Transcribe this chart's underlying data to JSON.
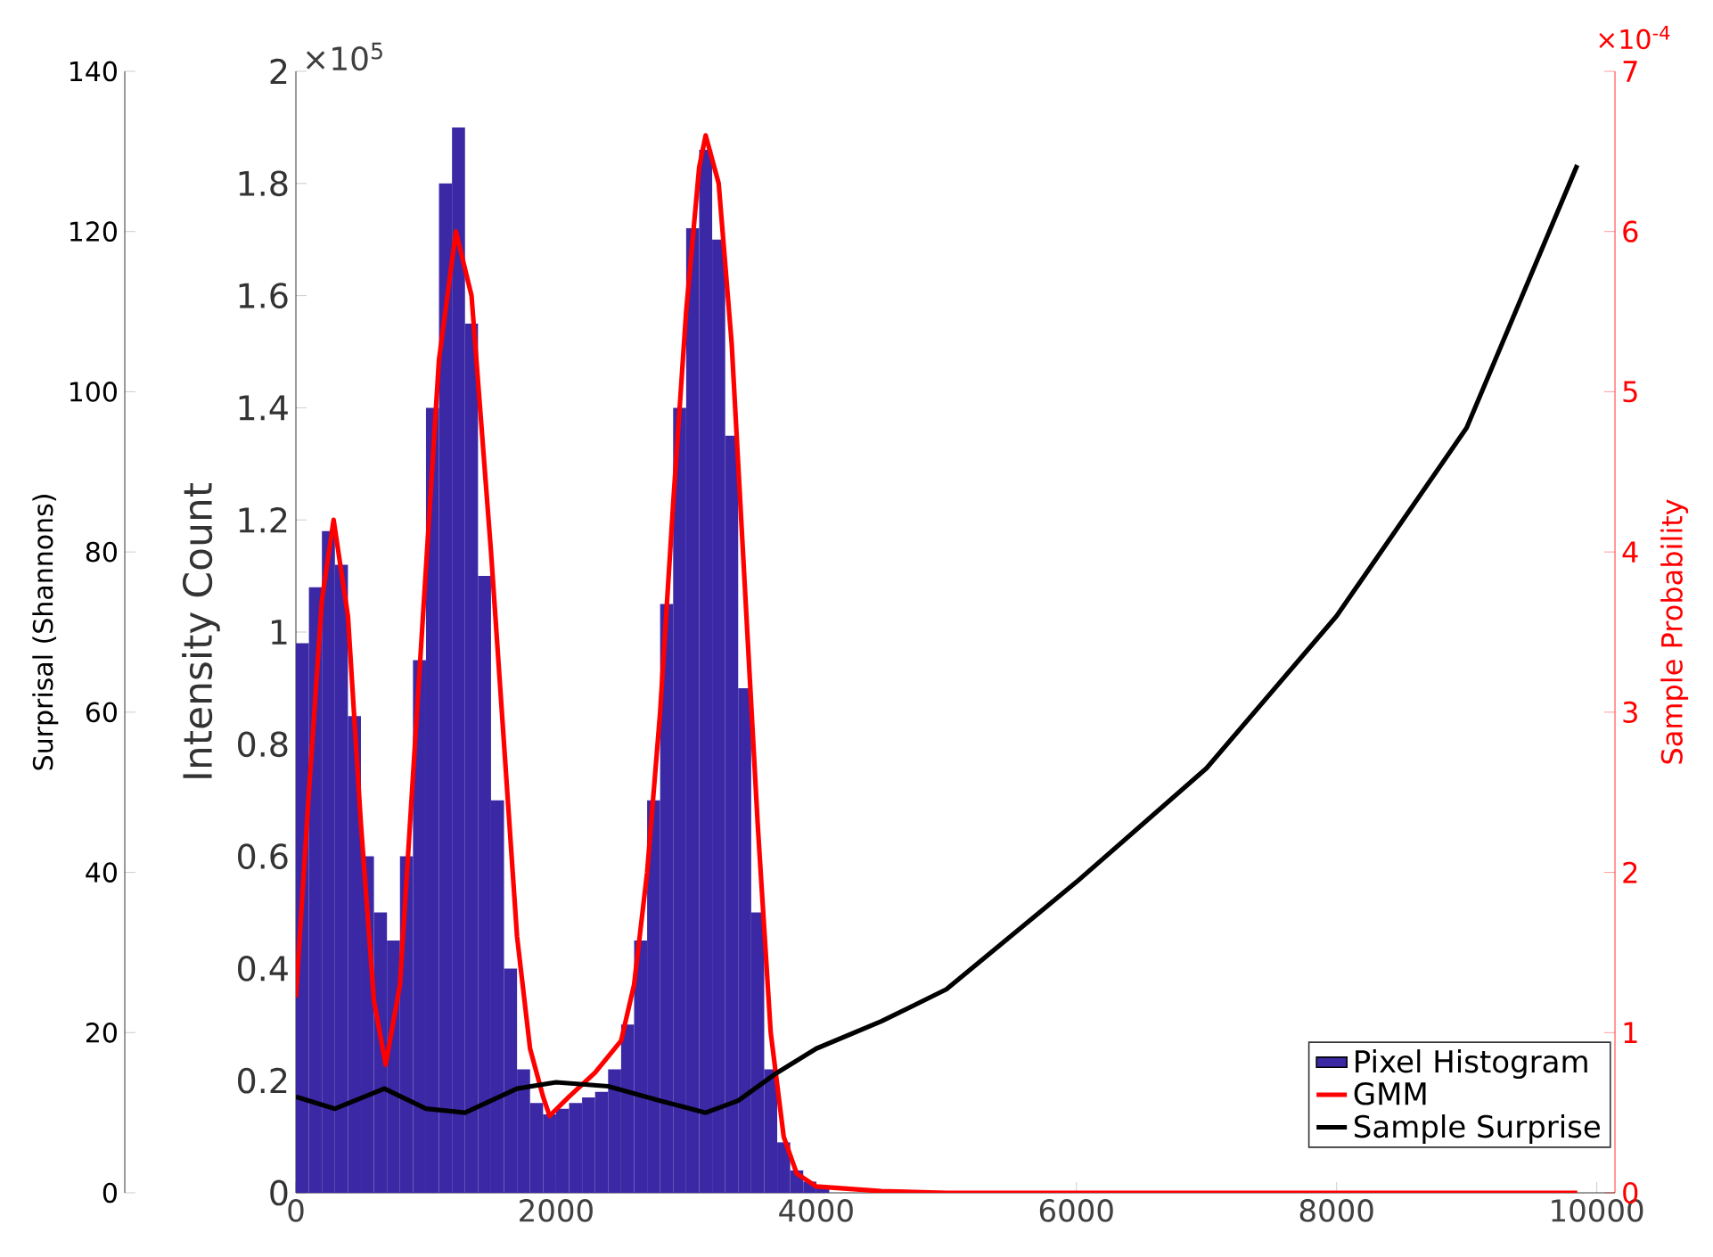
{
  "chart_data": {
    "type": "histogram",
    "ylabel": "Intensity Count",
    "y2label": "Sample Probability",
    "y3label": "Surprisal (Shannons)",
    "annotations": [
      "×10$^{5}$",
      "×10$^{-4}$"
    ],
    "xlim": [
      0,
      10140
    ],
    "xticks": [
      0,
      2000,
      4000,
      6000,
      8000,
      10000
    ],
    "ylim": [
      0,
      2
    ],
    "yticks": [
      0,
      0.2,
      0.4,
      0.6,
      0.8,
      1,
      1.2,
      1.4,
      1.6,
      1.8,
      2
    ],
    "y2lim": [
      0,
      7
    ],
    "y2ticks": [
      0,
      1,
      2,
      3,
      4,
      5,
      6,
      7
    ],
    "y3lim": [
      0,
      140
    ],
    "y3ticks": [
      0,
      20,
      40,
      60,
      80,
      100,
      120,
      140
    ],
    "legend": "bottom right",
    "series": [
      {
        "name": "Pixel Histogram",
        "color": "#3b28a4",
        "bins": [
          0,
          100,
          200,
          300,
          400,
          500,
          600,
          700,
          800,
          900,
          1000,
          1100,
          1200,
          1300,
          1400,
          1500,
          1600,
          1700,
          1800,
          1900,
          2000,
          2100,
          2200,
          2300,
          2400,
          2500,
          2600,
          2700,
          2800,
          2900,
          3000,
          3100,
          3200,
          3300,
          3400,
          3500,
          3600,
          3700,
          3800,
          3900,
          4000,
          4100,
          4200
        ],
        "values": [
          0.98,
          1.08,
          1.18,
          1.12,
          0.85,
          0.6,
          0.5,
          0.45,
          0.6,
          0.95,
          1.4,
          1.8,
          1.9,
          1.55,
          1.1,
          0.7,
          0.4,
          0.22,
          0.16,
          0.14,
          0.15,
          0.16,
          0.17,
          0.18,
          0.22,
          0.3,
          0.45,
          0.7,
          1.05,
          1.4,
          1.72,
          1.86,
          1.7,
          1.35,
          0.9,
          0.5,
          0.22,
          0.09,
          0.04,
          0.02,
          0.01,
          null
        ]
      },
      {
        "type": "line",
        "axis": "y2",
        "name": "GMM",
        "color": "#ff0000",
        "x": [
          0,
          100,
          200,
          290,
          400,
          500,
          600,
          690,
          800,
          900,
          1000,
          1100,
          1230,
          1350,
          1500,
          1600,
          1700,
          1800,
          1900,
          1950,
          2100,
          2300,
          2500,
          2600,
          2700,
          2800,
          2900,
          3000,
          3100,
          3150,
          3250,
          3350,
          3450,
          3550,
          3650,
          3750,
          3850,
          4000,
          4500,
          5000,
          9850
        ],
        "values": [
          1.22,
          2.5,
          3.7,
          4.2,
          3.6,
          2.3,
          1.2,
          0.8,
          1.3,
          2.6,
          3.9,
          5.2,
          6.0,
          5.6,
          4.0,
          2.8,
          1.6,
          0.9,
          0.6,
          0.48,
          0.6,
          0.75,
          0.95,
          1.3,
          2.0,
          3.0,
          4.3,
          5.5,
          6.4,
          6.6,
          6.3,
          5.3,
          3.8,
          2.3,
          1.0,
          0.35,
          0.12,
          0.04,
          0.01,
          0,
          0
        ]
      },
      {
        "type": "line",
        "axis": "y3",
        "name": "Sample Surprise",
        "color": "#000000",
        "x": [
          0,
          300,
          680,
          1000,
          1300,
          1700,
          2000,
          2400,
          2800,
          3150,
          3400,
          3700,
          4000,
          4500,
          5000,
          6000,
          7000,
          8000,
          9000,
          9850
        ],
        "values": [
          12,
          10.5,
          13,
          10.5,
          10,
          13,
          13.8,
          13.3,
          11.5,
          10,
          11.5,
          15,
          18,
          21.4,
          25.4,
          38.8,
          53,
          72,
          95.5,
          128.3
        ]
      }
    ]
  }
}
